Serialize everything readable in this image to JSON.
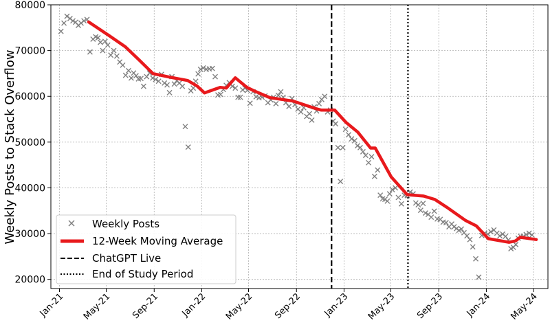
{
  "chart_data": {
    "type": "scatter+line",
    "title": "",
    "xlabel": "",
    "ylabel": "Weekly Posts to Stack Overflow",
    "xlim": [
      "2020-12-10",
      "2024-06-07"
    ],
    "ylim": [
      18000,
      80000
    ],
    "grid": true,
    "legend_placement": "bottom-left",
    "x_ticks": [
      {
        "date": "2021-01-01",
        "label": "Jan-21"
      },
      {
        "date": "2021-05-01",
        "label": "May-21"
      },
      {
        "date": "2021-09-01",
        "label": "Sep-21"
      },
      {
        "date": "2022-01-01",
        "label": "Jan-22"
      },
      {
        "date": "2022-05-01",
        "label": "May-22"
      },
      {
        "date": "2022-09-01",
        "label": "Sep-22"
      },
      {
        "date": "2023-01-01",
        "label": "Jan-23"
      },
      {
        "date": "2023-05-01",
        "label": "May-23"
      },
      {
        "date": "2023-09-01",
        "label": "Sep-23"
      },
      {
        "date": "2024-01-01",
        "label": "Jan-24"
      },
      {
        "date": "2024-05-01",
        "label": "May-24"
      }
    ],
    "y_ticks": [
      20000,
      30000,
      40000,
      50000,
      60000,
      70000,
      80000
    ],
    "colors": {
      "scatter": "#808080",
      "moving_average": "#e8191c",
      "vlines": "#000000"
    },
    "series": [
      {
        "name": "Weekly Posts",
        "kind": "scatter",
        "marker": "x",
        "monthly_weeks": [
          {
            "month": "2021-01",
            "values": [
              74200,
              76000,
              77500,
              77000
            ]
          },
          {
            "month": "2021-02",
            "values": [
              76500,
              76200,
              75500,
              76000
            ]
          },
          {
            "month": "2021-03",
            "values": [
              76500,
              76800,
              69700,
              72500
            ]
          },
          {
            "month": "2021-04",
            "values": [
              73000,
              72800,
              71800,
              70000,
              72000
            ]
          },
          {
            "month": "2021-05",
            "values": [
              71200,
              69000,
              70000,
              68800
            ]
          },
          {
            "month": "2021-06",
            "values": [
              67500,
              66800,
              64600,
              65600
            ]
          },
          {
            "month": "2021-07",
            "values": [
              64000,
              65100,
              64500,
              63800,
              63900
            ]
          },
          {
            "month": "2021-08",
            "values": [
              62200,
              64300,
              65100,
              64000
            ]
          },
          {
            "month": "2021-09",
            "values": [
              63700,
              63300,
              64800,
              62900
            ]
          },
          {
            "month": "2021-10",
            "values": [
              62500,
              60800,
              64300,
              62700,
              63400
            ]
          },
          {
            "month": "2021-11",
            "values": [
              62900,
              62200,
              53400,
              48900
            ]
          },
          {
            "month": "2021-12",
            "values": [
              61200,
              61800,
              63300,
              64900,
              65900
            ]
          },
          {
            "month": "2022-01",
            "values": [
              66200,
              65900,
              66000,
              66100
            ]
          },
          {
            "month": "2022-02",
            "values": [
              64300,
              60300,
              60400,
              61500
            ]
          },
          {
            "month": "2022-03",
            "values": [
              62400,
              63000,
              62200,
              61800
            ]
          },
          {
            "month": "2022-04",
            "values": [
              59800,
              59800,
              61400,
              61800,
              61300
            ]
          },
          {
            "month": "2022-05",
            "values": [
              58500,
              61000,
              59900,
              59700
            ]
          },
          {
            "month": "2022-06",
            "values": [
              59800,
              60100,
              58600,
              59200
            ]
          },
          {
            "month": "2022-07",
            "values": [
              59800,
              58400,
              60200,
              61000,
              59800
            ]
          },
          {
            "month": "2022-08",
            "values": [
              58600,
              57800,
              59500,
              58200
            ]
          },
          {
            "month": "2022-09",
            "values": [
              57200,
              56600,
              57500,
              55600
            ]
          },
          {
            "month": "2022-10",
            "values": [
              56200,
              54800,
              57700,
              56800,
              58400
            ]
          },
          {
            "month": "2022-11",
            "values": [
              59300,
              60000,
              56600,
              57000
            ]
          },
          {
            "month": "2022-12",
            "values": [
              54600,
              54000,
              48800,
              41400,
              48800
            ]
          },
          {
            "month": "2023-01",
            "values": [
              52800,
              51600,
              50700,
              50300
            ]
          },
          {
            "month": "2023-02",
            "values": [
              49200,
              48800,
              47900,
              47100
            ]
          },
          {
            "month": "2023-03",
            "values": [
              45500,
              46800,
              42500,
              43900
            ]
          },
          {
            "month": "2023-04",
            "values": [
              38400,
              37600,
              37500,
              37100,
              38700
            ]
          },
          {
            "month": "2023-05",
            "values": [
              39600,
              40000,
              37900,
              36500
            ]
          },
          {
            "month": "2023-06",
            "values": [
              38400,
              38300,
              39100,
              38700
            ]
          },
          {
            "month": "2023-07",
            "values": [
              36700,
              36300,
              35100,
              36600,
              34500
            ]
          },
          {
            "month": "2023-08",
            "values": [
              34200,
              33600,
              34900,
              33200
            ]
          },
          {
            "month": "2023-09",
            "values": [
              33100,
              32500,
              32400,
              31500
            ]
          },
          {
            "month": "2023-10",
            "values": [
              32100,
              31500,
              31100,
              30700,
              31000
            ]
          },
          {
            "month": "2023-11",
            "values": [
              30200,
              29500,
              28700,
              27100
            ]
          },
          {
            "month": "2023-12",
            "values": [
              24500,
              20500,
              29600,
              30100
            ]
          },
          {
            "month": "2024-01",
            "values": [
              29900,
              30400,
              30800,
              30100
            ]
          },
          {
            "month": "2024-02",
            "values": [
              29500,
              29900,
              29400,
              28600
            ]
          },
          {
            "month": "2024-03",
            "values": [
              26700,
              27000,
              27600,
              29000,
              29400
            ]
          },
          {
            "month": "2024-04",
            "values": [
              29400,
              29800,
              30100,
              29700
            ]
          }
        ]
      },
      {
        "name": "12-Week Moving Average",
        "kind": "line",
        "points": [
          [
            "2021-03-17",
            76240
          ],
          [
            "2021-05-09",
            73230
          ],
          [
            "2021-06-19",
            70830
          ],
          [
            "2021-07-24",
            67970
          ],
          [
            "2021-08-29",
            64960
          ],
          [
            "2021-10-10",
            64210
          ],
          [
            "2021-11-26",
            63460
          ],
          [
            "2021-12-20",
            62260
          ],
          [
            "2022-01-08",
            60750
          ],
          [
            "2022-02-17",
            61950
          ],
          [
            "2022-03-05",
            61800
          ],
          [
            "2022-03-28",
            64060
          ],
          [
            "2022-04-27",
            61950
          ],
          [
            "2022-05-15",
            61200
          ],
          [
            "2022-06-25",
            59700
          ],
          [
            "2022-08-24",
            58950
          ],
          [
            "2022-10-21",
            57300
          ],
          [
            "2022-11-03",
            57000
          ],
          [
            "2022-12-08",
            57000
          ],
          [
            "2023-01-06",
            54300
          ],
          [
            "2023-02-05",
            52200
          ],
          [
            "2023-03-10",
            48700
          ],
          [
            "2023-03-22",
            48700
          ],
          [
            "2023-05-02",
            42400
          ],
          [
            "2023-06-12",
            38500
          ],
          [
            "2023-07-24",
            38200
          ],
          [
            "2023-08-22",
            37450
          ],
          [
            "2023-09-26",
            35500
          ],
          [
            "2023-11-08",
            32900
          ],
          [
            "2023-12-06",
            31700
          ],
          [
            "2024-01-06",
            28900
          ],
          [
            "2024-02-28",
            28100
          ],
          [
            "2024-03-16",
            28400
          ],
          [
            "2024-03-28",
            29200
          ],
          [
            "2024-05-08",
            28700
          ]
        ]
      }
    ],
    "vlines": [
      {
        "name": "ChatGPT Live",
        "date": "2022-11-30",
        "style": "dashed"
      },
      {
        "name": "End of Study Period",
        "date": "2023-06-14",
        "style": "dotted"
      }
    ]
  }
}
